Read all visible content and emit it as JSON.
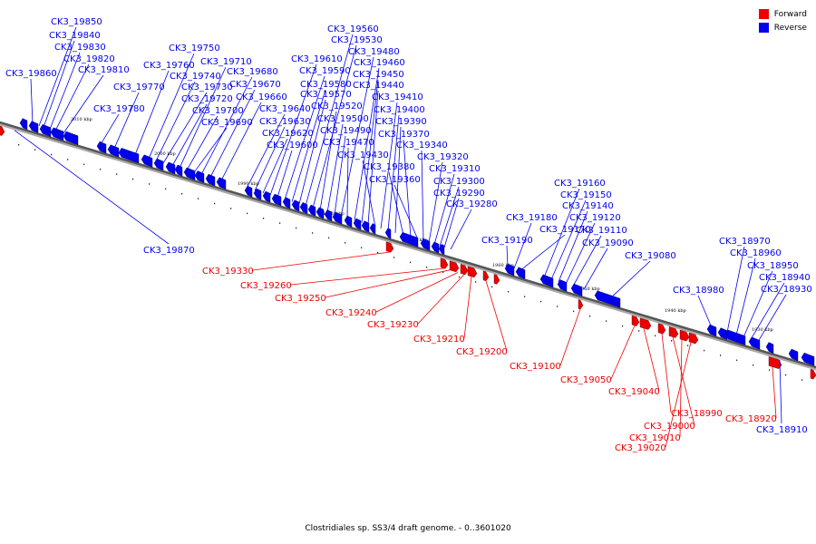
{
  "legend": {
    "forward_label": "Forward",
    "reverse_label": "Reverse",
    "forward_color": "#ee0000",
    "reverse_color": "#0000ee"
  },
  "footer": {
    "caption": "Clostridiales sp. SS3/4 draft genome. - 0..3601020"
  },
  "scale": {
    "ticks": [
      "2010 kbp",
      "2000 kbp",
      "1990 kbp",
      "1980 kbp",
      "1970 kbp",
      "1960 kbp",
      "1950 kbp",
      "1940 kbp",
      "1930 kbp"
    ]
  },
  "reverse_genes": [
    "CK3_19860",
    "CK3_19850",
    "CK3_19840",
    "CK3_19830",
    "CK3_19820",
    "CK3_19810",
    "CK3_19780",
    "CK3_19770",
    "CK3_19760",
    "CK3_19750",
    "CK3_19740",
    "CK3_19730",
    "CK3_19720",
    "CK3_19710",
    "CK3_19700",
    "CK3_19690",
    "CK3_19680",
    "CK3_19670",
    "CK3_19660",
    "CK3_19640",
    "CK3_19630",
    "CK3_19620",
    "CK3_19610",
    "CK3_19600",
    "CK3_19590",
    "CK3_19580",
    "CK3_19570",
    "CK3_19560",
    "CK3_19530",
    "CK3_19520",
    "CK3_19500",
    "CK3_19490",
    "CK3_19480",
    "CK3_19470",
    "CK3_19460",
    "CK3_19450",
    "CK3_19440",
    "CK3_19430",
    "CK3_19410",
    "CK3_19400",
    "CK3_19390",
    "CK3_19380",
    "CK3_19370",
    "CK3_19360",
    "CK3_19340",
    "CK3_19320",
    "CK3_19310",
    "CK3_19300",
    "CK3_19290",
    "CK3_19280",
    "CK3_19190",
    "CK3_19180",
    "CK3_19170",
    "CK3_19160",
    "CK3_19150",
    "CK3_19140",
    "CK3_19120",
    "CK3_19110",
    "CK3_19090",
    "CK3_19080",
    "CK3_18980",
    "CK3_18970",
    "CK3_18960",
    "CK3_18950",
    "CK3_18940",
    "CK3_18930",
    "CK3_18910",
    "CK3_19870"
  ],
  "forward_genes": [
    "CK3_19330",
    "CK3_19260",
    "CK3_19250",
    "CK3_19240",
    "CK3_19230",
    "CK3_19210",
    "CK3_19200",
    "CK3_19100",
    "CK3_19050",
    "CK3_19040",
    "CK3_18990",
    "CK3_19000",
    "CK3_19010",
    "CK3_19020",
    "CK3_18920"
  ]
}
